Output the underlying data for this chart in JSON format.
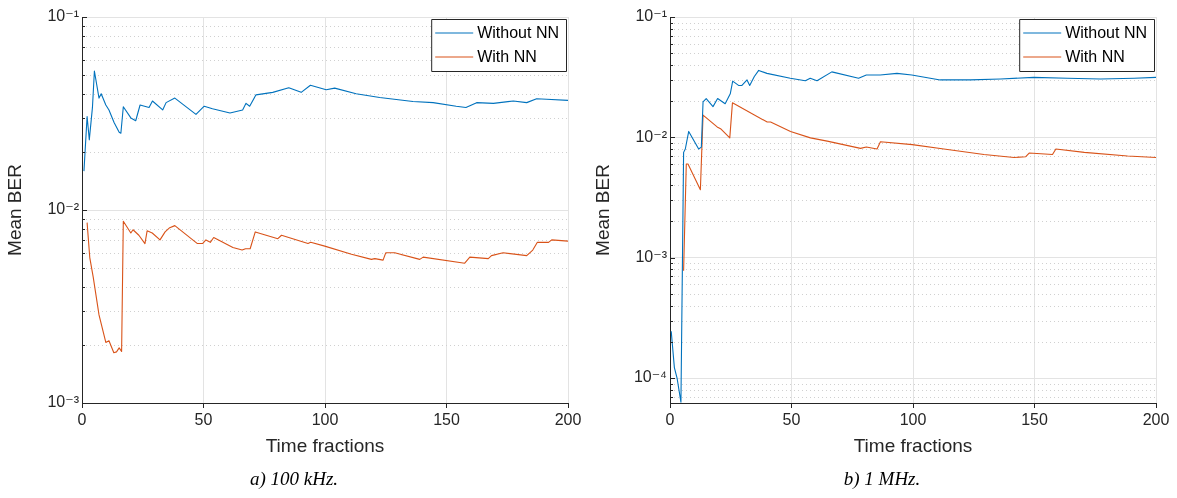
{
  "chart_data": [
    {
      "type": "line",
      "xlabel": "Time fractions",
      "ylabel": "Mean BER",
      "annotations": [
        "a) 100 kHz."
      ],
      "log": "y",
      "grid": true,
      "legend": "top right",
      "xlim": [
        0,
        200
      ],
      "xticks": [
        0,
        50,
        100,
        150,
        200
      ],
      "ylim": [
        0.001,
        0.1
      ],
      "yticks": [
        {
          "value": 0.001,
          "label": "10⁻³"
        },
        {
          "value": 0.002,
          "label": null
        },
        {
          "value": 0.003,
          "label": null
        },
        {
          "value": 0.004,
          "label": null
        },
        {
          "value": 0.005,
          "label": null
        },
        {
          "value": 0.006,
          "label": null
        },
        {
          "value": 0.007,
          "label": null
        },
        {
          "value": 0.008,
          "label": null
        },
        {
          "value": 0.009,
          "label": null
        },
        {
          "value": 0.01,
          "label": "10⁻²"
        },
        {
          "value": 0.02,
          "label": null
        },
        {
          "value": 0.03,
          "label": null
        },
        {
          "value": 0.04,
          "label": null
        },
        {
          "value": 0.05,
          "label": null
        },
        {
          "value": 0.06,
          "label": null
        },
        {
          "value": 0.07,
          "label": null
        },
        {
          "value": 0.08,
          "label": null
        },
        {
          "value": 0.09,
          "label": null
        },
        {
          "value": 0.1,
          "label": "10⁻¹"
        }
      ],
      "series": [
        {
          "name": "Without NN",
          "color": "#0072bd",
          "x": [
            0.8,
            2.1,
            3,
            4.3,
            5.1,
            7,
            7.9,
            9.8,
            11.1,
            13.2,
            15.3,
            16,
            17,
            20.1,
            22.1,
            23.9,
            27.6,
            29,
            33.2,
            34.6,
            38.2,
            46.9,
            50.3,
            53.7,
            60.9,
            66.1,
            67.5,
            69,
            71.6,
            78.5,
            85.1,
            90.2,
            94,
            100.5,
            104,
            112.8,
            122.5,
            136.2,
            144.5,
            154,
            158,
            162.4,
            169.3,
            177.5,
            183,
            187.1,
            191.2,
            200
          ],
          "values": [
            0.0159,
            0.0305,
            0.0231,
            0.034,
            0.0525,
            0.038,
            0.04,
            0.035,
            0.033,
            0.0284,
            0.0253,
            0.025,
            0.0343,
            0.03,
            0.029,
            0.035,
            0.034,
            0.0367,
            0.033,
            0.036,
            0.038,
            0.0313,
            0.0345,
            0.0335,
            0.0318,
            0.033,
            0.0357,
            0.0345,
            0.0395,
            0.0407,
            0.043,
            0.0407,
            0.0443,
            0.042,
            0.0428,
            0.04,
            0.0383,
            0.0365,
            0.036,
            0.0345,
            0.034,
            0.036,
            0.0357,
            0.0367,
            0.036,
            0.0377,
            0.0375,
            0.037
          ]
        },
        {
          "name": "With NN",
          "color": "#d95319",
          "x": [
            2.1,
            3.2,
            4.6,
            7,
            9.8,
            11.1,
            13.1,
            14.2,
            15.3,
            16.3,
            17,
            20.1,
            21,
            23.4,
            25.9,
            26.8,
            28.9,
            32.1,
            34.2,
            36.1,
            38.2,
            47.5,
            49.6,
            51,
            52.8,
            54.2,
            62.1,
            65.9,
            67.3,
            69.2,
            71.3,
            80.6,
            82.1,
            93,
            94.1,
            99.9,
            110.9,
            119.1,
            120.5,
            123.9,
            125,
            128.7,
            139,
            140.4,
            157.5,
            159.6,
            167.2,
            168.5,
            173.3,
            183,
            185.5,
            187.4,
            192,
            193.3,
            200
          ],
          "values": [
            0.0086,
            0.00567,
            0.0045,
            0.00286,
            0.00206,
            0.0021,
            0.00182,
            0.00184,
            0.00193,
            0.00185,
            0.00874,
            0.0076,
            0.0079,
            0.0074,
            0.0067,
            0.0078,
            0.0076,
            0.007,
            0.0077,
            0.0081,
            0.0083,
            0.0067,
            0.0067,
            0.007,
            0.0068,
            0.0072,
            0.0064,
            0.0062,
            0.0063,
            0.0063,
            0.0077,
            0.0071,
            0.0074,
            0.0067,
            0.0068,
            0.0065,
            0.0059,
            0.00555,
            0.0056,
            0.0055,
            0.006,
            0.006,
            0.00555,
            0.0057,
            0.0053,
            0.0057,
            0.0056,
            0.0058,
            0.006,
            0.0058,
            0.0062,
            0.0068,
            0.0068,
            0.007,
            0.0069
          ]
        }
      ]
    },
    {
      "type": "line",
      "xlabel": "Time fractions",
      "ylabel": "Mean BER",
      "annotations": [
        "b) 1 MHz."
      ],
      "log": "y",
      "grid": true,
      "legend": "top right",
      "xlim": [
        0,
        200
      ],
      "xticks": [
        0,
        50,
        100,
        150,
        200
      ],
      "ylim": [
        6.2e-05,
        0.1
      ],
      "yticks": [
        {
          "value": 7e-05,
          "label": null
        },
        {
          "value": 8e-05,
          "label": null
        },
        {
          "value": 9e-05,
          "label": null
        },
        {
          "value": 0.0001,
          "label": "10⁻⁴"
        },
        {
          "value": 0.0002,
          "label": null
        },
        {
          "value": 0.0003,
          "label": null
        },
        {
          "value": 0.0004,
          "label": null
        },
        {
          "value": 0.0005,
          "label": null
        },
        {
          "value": 0.0006,
          "label": null
        },
        {
          "value": 0.0007,
          "label": null
        },
        {
          "value": 0.0008,
          "label": null
        },
        {
          "value": 0.0009,
          "label": null
        },
        {
          "value": 0.001,
          "label": "10⁻³"
        },
        {
          "value": 0.002,
          "label": null
        },
        {
          "value": 0.003,
          "label": null
        },
        {
          "value": 0.004,
          "label": null
        },
        {
          "value": 0.005,
          "label": null
        },
        {
          "value": 0.006,
          "label": null
        },
        {
          "value": 0.007,
          "label": null
        },
        {
          "value": 0.008,
          "label": null
        },
        {
          "value": 0.009,
          "label": null
        },
        {
          "value": 0.01,
          "label": "10⁻²"
        },
        {
          "value": 0.02,
          "label": null
        },
        {
          "value": 0.03,
          "label": null
        },
        {
          "value": 0.04,
          "label": null
        },
        {
          "value": 0.05,
          "label": null
        },
        {
          "value": 0.06,
          "label": null
        },
        {
          "value": 0.07,
          "label": null
        },
        {
          "value": 0.08,
          "label": null
        },
        {
          "value": 0.09,
          "label": null
        },
        {
          "value": 0.1,
          "label": "10⁻¹"
        }
      ],
      "series": [
        {
          "name": "Without NN",
          "color": "#0072bd",
          "x": [
            0.5,
            1.8,
            2.9,
            4.5,
            5.6,
            6.3,
            7.7,
            11.8,
            12.9,
            13.6,
            14.9,
            17.7,
            19.6,
            22.7,
            24.8,
            25.8,
            28.2,
            29.6,
            31.7,
            32.8,
            34.7,
            36.5,
            39.9,
            49.5,
            55.7,
            57.7,
            60.5,
            66.6,
            77.6,
            80.8,
            86.5,
            93.4,
            99.5,
            111.2,
            123.6,
            136,
            149.7,
            163.5,
            177.2,
            191,
            200
          ],
          "values": [
            0.000245,
            0.000122,
            0.0001,
            6.3e-05,
            0.0075,
            0.008,
            0.0112,
            0.008,
            0.0083,
            0.0197,
            0.021,
            0.018,
            0.021,
            0.019,
            0.023,
            0.0293,
            0.027,
            0.027,
            0.03,
            0.027,
            0.032,
            0.036,
            0.034,
            0.031,
            0.0295,
            0.031,
            0.0295,
            0.035,
            0.031,
            0.033,
            0.033,
            0.034,
            0.033,
            0.03,
            0.03,
            0.0305,
            0.0315,
            0.031,
            0.0305,
            0.031,
            0.0315
          ]
        },
        {
          "name": "With NN",
          "color": "#d95319",
          "x": [
            5.6,
            6.7,
            7.4,
            12.5,
            13.6,
            19.4,
            20.8,
            24.6,
            25.7,
            40,
            41.4,
            49.6,
            57.8,
            64.7,
            78.4,
            80.8,
            85.2,
            86.6,
            99.7,
            112.7,
            129.2,
            141.6,
            146.4,
            147.8,
            157.4,
            158.8,
            170.5,
            188.3,
            200
          ],
          "values": [
            0.00078,
            0.006,
            0.006,
            0.00367,
            0.0153,
            0.0122,
            0.0118,
            0.0099,
            0.0194,
            0.0134,
            0.0134,
            0.0112,
            0.0099,
            0.0093,
            0.0081,
            0.0083,
            0.008,
            0.0092,
            0.0087,
            0.008,
            0.0072,
            0.0068,
            0.0069,
            0.0074,
            0.0072,
            0.008,
            0.0075,
            0.007,
            0.0068
          ]
        }
      ]
    }
  ]
}
